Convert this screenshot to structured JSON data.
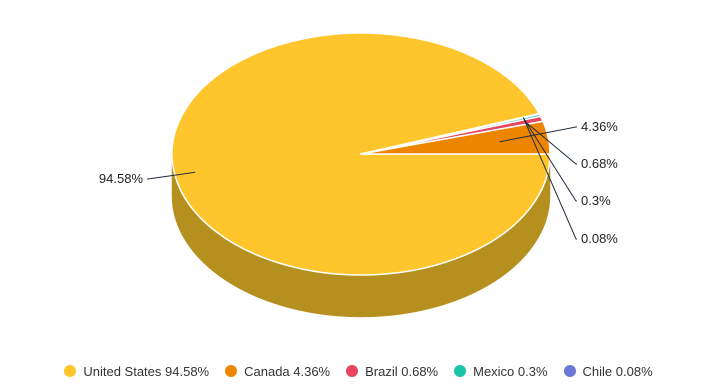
{
  "chart_data": {
    "type": "pie",
    "style": "3d",
    "slices": [
      {
        "name": "United States",
        "value": 94.58,
        "label": "94.58%",
        "legend": "United States 94.58%",
        "color": "#ffc52c",
        "side_color": "#b5901f"
      },
      {
        "name": "Canada",
        "value": 4.36,
        "label": "4.36%",
        "legend": "Canada 4.36%",
        "color": "#ee8500",
        "side_color": "#a85e00"
      },
      {
        "name": "Brazil",
        "value": 0.68,
        "label": "0.68%",
        "legend": "Brazil 0.68%",
        "color": "#e6455e",
        "side_color": "#a23142"
      },
      {
        "name": "Mexico",
        "value": 0.3,
        "label": "0.3%",
        "legend": "Mexico 0.3%",
        "color": "#1bc3a9",
        "side_color": "#138a78"
      },
      {
        "name": "Chile",
        "value": 0.08,
        "label": "0.08%",
        "legend": "Chile 0.08%",
        "color": "#6c78d4",
        "side_color": "#4c5596"
      }
    ],
    "legend_position": "bottom"
  }
}
